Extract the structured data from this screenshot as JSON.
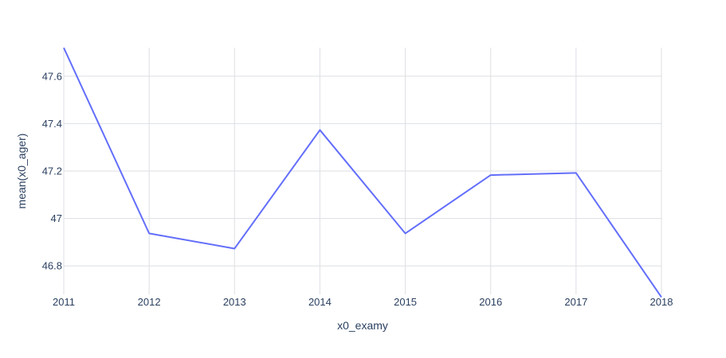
{
  "chart_data": {
    "type": "line",
    "xlabel": "x0_examy",
    "ylabel": "mean(x0_ager)",
    "xlim": [
      2011,
      2018
    ],
    "ylim": [
      46.68,
      47.72
    ],
    "x": [
      2011,
      2012,
      2013,
      2014,
      2015,
      2016,
      2017,
      2018
    ],
    "series": [
      {
        "values": [
          47.72,
          46.937,
          46.873,
          47.373,
          46.937,
          47.183,
          47.192,
          46.668
        ],
        "color": "#636efa"
      }
    ],
    "x_ticks": [
      "2011",
      "2012",
      "2013",
      "2014",
      "2015",
      "2016",
      "2017",
      "2018"
    ],
    "y_ticks": [
      {
        "value": 46.8,
        "label": "46.8"
      },
      {
        "value": 47.0,
        "label": "47"
      },
      {
        "value": 47.2,
        "label": "47.2"
      },
      {
        "value": 47.4,
        "label": "47.4"
      },
      {
        "value": 47.6,
        "label": "47.6"
      }
    ],
    "grid": true,
    "legend": false
  }
}
